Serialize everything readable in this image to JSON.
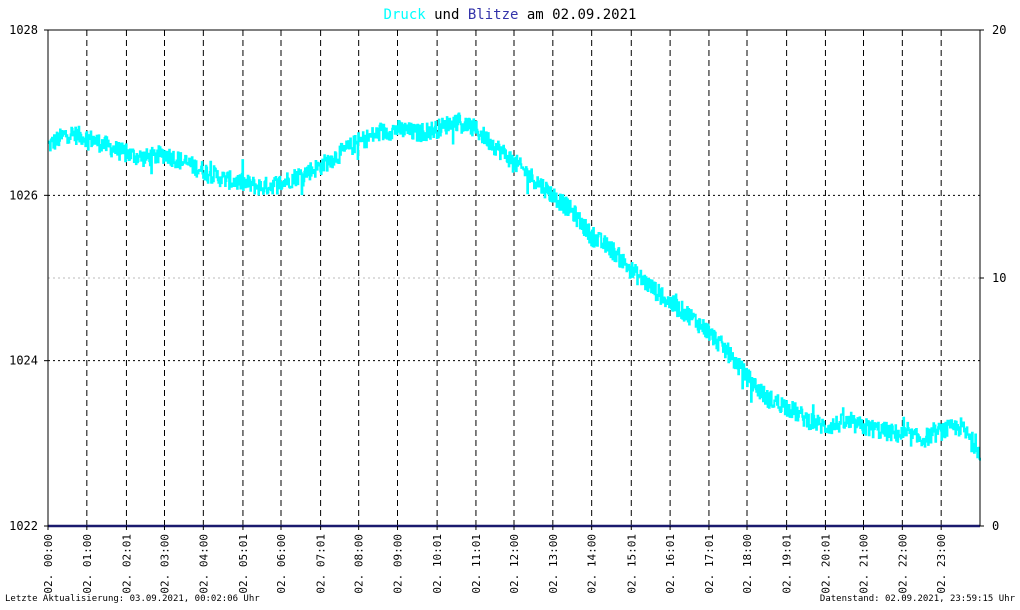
{
  "title": {
    "part1": "Druck",
    "part2": " und ",
    "part3": "Blitze",
    "part4": " am 02.09.2021"
  },
  "footer": {
    "left": "Letzte Aktualisierung: 03.09.2021, 00:02:06 Uhr",
    "right": "Datenstand: 02.09.2021, 23:59:15 Uhr"
  },
  "colors": {
    "druck": "#00ffff",
    "blitze": "#3333aa",
    "title_text": "#000000",
    "baseline": "#1a1a6e",
    "grid": "#000000",
    "light_grid": "#bbbbbb"
  },
  "chart_data": {
    "type": "line",
    "title": "Druck und Blitze am 02.09.2021",
    "y_left": {
      "min": 1022,
      "max": 1028,
      "ticks": [
        1022,
        1024,
        1026,
        1028
      ],
      "tick_labels": [
        "1022",
        "1024",
        "1026",
        "1028"
      ]
    },
    "y_right": {
      "min": 0,
      "max": 20,
      "ticks": [
        0,
        10,
        20
      ],
      "tick_labels": [
        "0",
        "10",
        "20"
      ]
    },
    "x": {
      "min_hours": 0,
      "max_hours": 24,
      "ticks": [
        0.0,
        1.0,
        2.02,
        3.0,
        4.0,
        5.02,
        6.0,
        7.02,
        8.0,
        9.0,
        10.02,
        11.02,
        12.0,
        13.0,
        14.0,
        15.02,
        16.02,
        17.02,
        18.0,
        19.02,
        20.02,
        21.0,
        22.0,
        23.0
      ],
      "tick_labels": [
        "02. 00:00",
        "02. 01:00",
        "02. 02:01",
        "02. 03:00",
        "02. 04:00",
        "02. 05:01",
        "02. 06:00",
        "02. 07:01",
        "02. 08:00",
        "02. 09:00",
        "02. 10:01",
        "02. 11:01",
        "02. 12:00",
        "02. 13:00",
        "02. 14:00",
        "02. 15:01",
        "02. 16:01",
        "02. 17:01",
        "02. 18:00",
        "02. 19:01",
        "02. 20:01",
        "02. 21:00",
        "02. 22:00",
        "02. 23:00"
      ]
    },
    "grid": true,
    "series": [
      {
        "name": "Druck",
        "axis": "left",
        "x_hours": [
          0.0,
          0.5,
          1.0,
          1.5,
          2.0,
          2.5,
          3.0,
          3.5,
          4.0,
          4.5,
          5.0,
          5.5,
          6.0,
          6.5,
          7.0,
          7.5,
          8.0,
          8.5,
          9.0,
          9.5,
          10.0,
          10.5,
          11.0,
          11.5,
          12.0,
          12.5,
          13.0,
          13.5,
          14.0,
          14.5,
          15.0,
          15.5,
          16.0,
          16.5,
          17.0,
          17.5,
          18.0,
          18.5,
          19.0,
          19.5,
          20.0,
          20.5,
          21.0,
          21.5,
          22.0,
          22.5,
          23.0,
          23.5,
          24.0
        ],
        "values": [
          1026.6,
          1026.75,
          1026.7,
          1026.6,
          1026.5,
          1026.45,
          1026.5,
          1026.4,
          1026.3,
          1026.2,
          1026.15,
          1026.1,
          1026.15,
          1026.25,
          1026.35,
          1026.5,
          1026.65,
          1026.75,
          1026.8,
          1026.75,
          1026.8,
          1026.9,
          1026.8,
          1026.6,
          1026.4,
          1026.2,
          1026.0,
          1025.8,
          1025.5,
          1025.35,
          1025.1,
          1024.9,
          1024.7,
          1024.55,
          1024.35,
          1024.1,
          1023.8,
          1023.55,
          1023.45,
          1023.3,
          1023.2,
          1023.25,
          1023.2,
          1023.15,
          1023.1,
          1023.05,
          1023.15,
          1023.2,
          1022.9
        ]
      },
      {
        "name": "Blitze",
        "axis": "right",
        "x_hours": [
          0,
          24
        ],
        "values": [
          0,
          0
        ]
      }
    ]
  }
}
